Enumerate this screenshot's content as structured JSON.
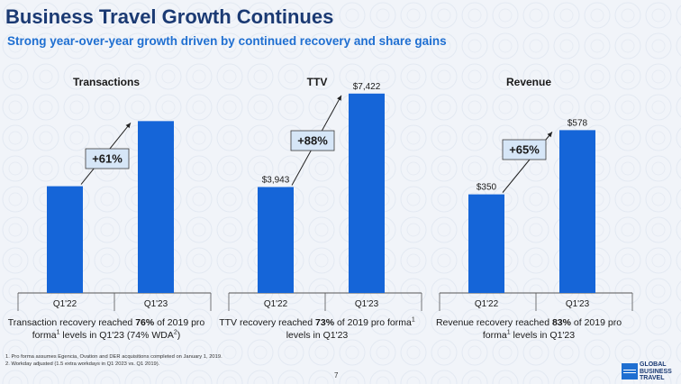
{
  "page": {
    "title": "Business Travel Growth Continues",
    "subtitle": "Strong year-over-year growth driven by continued recovery and share gains",
    "page_number": "7",
    "footnotes": [
      "1. Pro forma assumes Egencia, Ovation and DER acquisitions completed on January 1, 2019.",
      "2. Workday adjusted (1.5 extra workdays in Q1 2023 vs. Q1 2019)."
    ],
    "logo": {
      "lines": [
        "GLOBAL",
        "BUSINESS",
        "TRAVEL"
      ],
      "icon": "american-express-box-icon"
    },
    "colors": {
      "bar": "#1565d8",
      "title": "#1b3a73",
      "subtitle": "#1f6fd1",
      "callout_bg": "#d6e6f7",
      "callout_border": "#3a3a3a"
    }
  },
  "captions": [
    {
      "pre": "Transaction recovery reached ",
      "bold": "76%",
      "mid": " of 2019 pro forma",
      "sup": "1",
      "post": " levels in Q1'23 (74% WDA",
      "sup2": "2",
      "end": ")"
    },
    {
      "pre": "TTV recovery reached ",
      "bold": "73%",
      "mid": " of 2019 pro forma",
      "sup": "1",
      "post": " levels in Q1'23",
      "sup2": "",
      "end": ""
    },
    {
      "pre": "Revenue recovery reached ",
      "bold": "83%",
      "mid": " of 2019 pro forma",
      "sup": "1",
      "post": " levels in Q1'23",
      "sup2": "",
      "end": ""
    }
  ],
  "chart_data": [
    {
      "type": "bar",
      "title": "Transactions",
      "categories": [
        "Q1'22",
        "Q1'23"
      ],
      "values": [
        100,
        161
      ],
      "value_labels": [
        "",
        ""
      ],
      "growth_label": "+61%",
      "ylim": [
        0,
        190
      ]
    },
    {
      "type": "bar",
      "title": "TTV",
      "categories": [
        "Q1'22",
        "Q1'23"
      ],
      "values": [
        3943,
        7422
      ],
      "value_labels": [
        "$3,943",
        "$7,422"
      ],
      "growth_label": "+88%",
      "ylim": [
        0,
        7550
      ]
    },
    {
      "type": "bar",
      "title": "Revenue",
      "categories": [
        "Q1'22",
        "Q1'23"
      ],
      "values": [
        350,
        578
      ],
      "value_labels": [
        "$350",
        "$578"
      ],
      "growth_label": "+65%",
      "ylim": [
        0,
        720
      ]
    }
  ]
}
